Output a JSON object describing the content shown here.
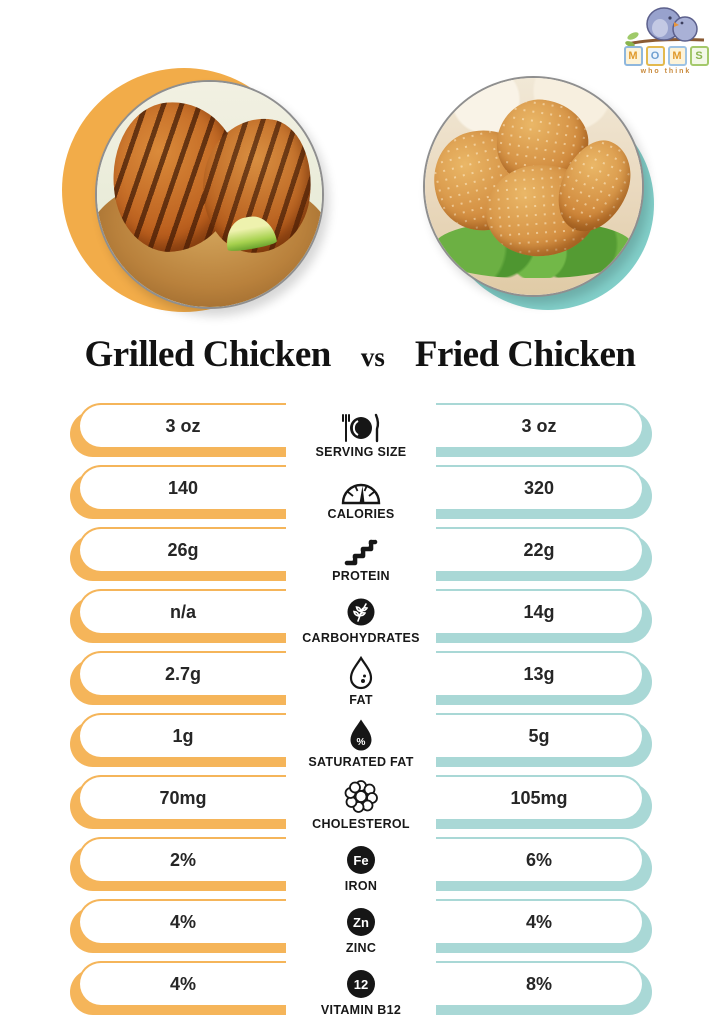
{
  "logo": {
    "brand": "MOMS",
    "tagline": "who think"
  },
  "header": {
    "left_title": "Grilled Chicken",
    "vs": "vs",
    "right_title": "Fried Chicken"
  },
  "colors": {
    "grilled_accent": "#F5B55A",
    "grilled_accent_deep": "#F2AC49",
    "fried_accent": "#A9D8D6",
    "fried_accent_deep": "#82CFC9",
    "icon_ink": "#161616"
  },
  "rows": [
    {
      "label": "SERVING SIZE",
      "icon": "plate-fork-knife",
      "left": "3 oz",
      "right": "3 oz"
    },
    {
      "label": "CALORIES",
      "icon": "gauge",
      "left": "140",
      "right": "320"
    },
    {
      "label": "PROTEIN",
      "icon": "protein-chain",
      "left": "26g",
      "right": "22g"
    },
    {
      "label": "CARBOHYDRATES",
      "icon": "wheat-circle",
      "left": "n/a",
      "right": "14g"
    },
    {
      "label": "FAT",
      "icon": "droplet",
      "left": "2.7g",
      "right": "13g"
    },
    {
      "label": "SATURATED FAT",
      "icon": "droplet-percent",
      "left": "1g",
      "right": "5g"
    },
    {
      "label": "CHOLESTEROL",
      "icon": "molecule",
      "left": "70mg",
      "right": "105mg"
    },
    {
      "label": "IRON",
      "icon": "element-fe",
      "left": "2%",
      "right": "6%"
    },
    {
      "label": "ZINC",
      "icon": "element-zn",
      "left": "4%",
      "right": "4%"
    },
    {
      "label": "VITAMIN B12",
      "icon": "element-b12",
      "left": "4%",
      "right": "8%"
    }
  ],
  "badges": {
    "iron": "Fe",
    "zinc": "Zn",
    "b12": "12"
  },
  "chart_data": {
    "type": "table",
    "title": "Grilled Chicken vs Fried Chicken",
    "categories": [
      "Serving Size",
      "Calories",
      "Protein",
      "Carbohydrates",
      "Fat",
      "Saturated Fat",
      "Cholesterol",
      "Iron",
      "Zinc",
      "Vitamin B12"
    ],
    "series": [
      {
        "name": "Grilled Chicken",
        "values": [
          "3 oz",
          "140",
          "26g",
          "n/a",
          "2.7g",
          "1g",
          "70mg",
          "2%",
          "4%",
          "4%"
        ]
      },
      {
        "name": "Fried Chicken",
        "values": [
          "3 oz",
          "320",
          "22g",
          "14g",
          "13g",
          "5g",
          "105mg",
          "6%",
          "4%",
          "8%"
        ]
      }
    ]
  }
}
